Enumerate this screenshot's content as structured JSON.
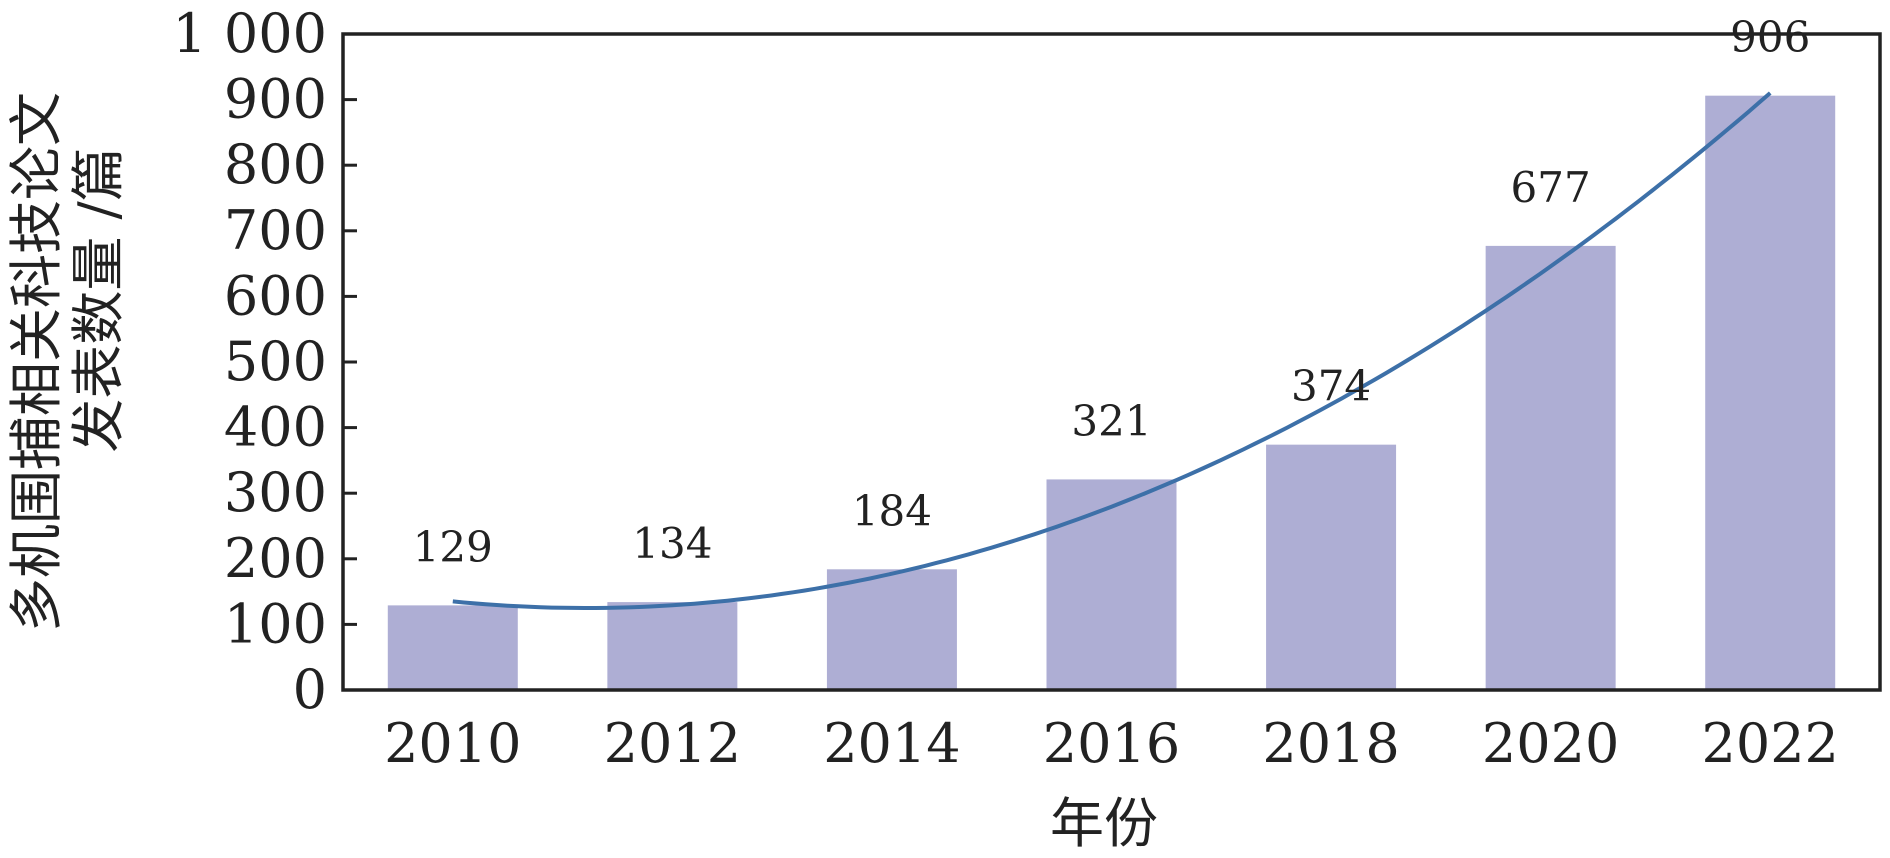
{
  "chart_data": {
    "type": "bar",
    "categories": [
      "2010",
      "2012",
      "2014",
      "2016",
      "2018",
      "2020",
      "2022"
    ],
    "values": [
      129,
      134,
      184,
      321,
      374,
      677,
      906
    ],
    "data_labels": [
      "129",
      "134",
      "184",
      "321",
      "374",
      "677",
      "906"
    ],
    "xlabel": "年份",
    "ylabel_line1": "多机围捕相关科技论文",
    "ylabel_line2": "发表数量 /篇",
    "ylim": [
      0,
      1000
    ],
    "yticks": [
      0,
      100,
      200,
      300,
      400,
      500,
      600,
      700,
      800,
      900,
      1000
    ],
    "ytick_labels": [
      "0",
      "100",
      "200",
      "300",
      "400",
      "500",
      "600",
      "700",
      "800",
      "900",
      "1 000"
    ],
    "trendline": {
      "type": "polynomial",
      "degree": 2,
      "start_value": 135,
      "end_value": 910,
      "min_value": 125
    },
    "grid": false,
    "legend": "none",
    "colors": {
      "bar": "#aeaed4",
      "trendline": "#3d70a8",
      "axis": "#222222"
    }
  }
}
